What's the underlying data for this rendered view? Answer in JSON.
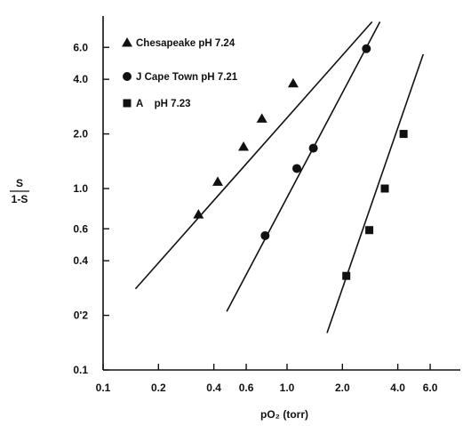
{
  "chart_data": {
    "type": "scatter",
    "title": "",
    "xlabel": "pO₂ (torr)",
    "ylabel": "S / 1-S",
    "ylabel_num": "S",
    "ylabel_den": "1-S",
    "xscale": "log",
    "yscale": "log",
    "xlim": [
      0.1,
      8.0
    ],
    "ylim": [
      0.1,
      8.0
    ],
    "x_ticks": [
      "0.1",
      "0.2",
      "0.4",
      "0.6",
      "1.0",
      "2.0",
      "4.0",
      "6.0"
    ],
    "y_ticks": [
      "0.1",
      "0'2",
      "0.4",
      "0.6",
      "1.0",
      "2.0",
      "4.0",
      "6.0"
    ],
    "grid": false,
    "legend_position": "top-left",
    "series": [
      {
        "name": "Chesapeake pH 7.24",
        "marker": "triangle",
        "x": [
          0.33,
          0.42,
          0.58,
          0.73,
          1.08
        ],
        "y": [
          0.72,
          1.09,
          1.7,
          2.43,
          3.8
        ],
        "fit": {
          "x": [
            0.15,
            2.9
          ],
          "y": [
            0.28,
            8.3
          ]
        }
      },
      {
        "name": "J Cape Town pH 7.21",
        "marker": "circle",
        "x": [
          0.76,
          1.13,
          1.39,
          2.7
        ],
        "y": [
          0.55,
          1.29,
          1.67,
          5.9
        ],
        "fit": {
          "x": [
            0.47,
            3.2
          ],
          "y": [
            0.21,
            8.3
          ]
        }
      },
      {
        "name": "A    pH 7.23",
        "marker": "square",
        "x": [
          2.1,
          2.8,
          3.4,
          4.3
        ],
        "y": [
          0.33,
          0.59,
          1.0,
          2.0
        ],
        "fit": {
          "x": [
            1.65,
            5.5
          ],
          "y": [
            0.16,
            5.5
          ]
        }
      }
    ]
  }
}
